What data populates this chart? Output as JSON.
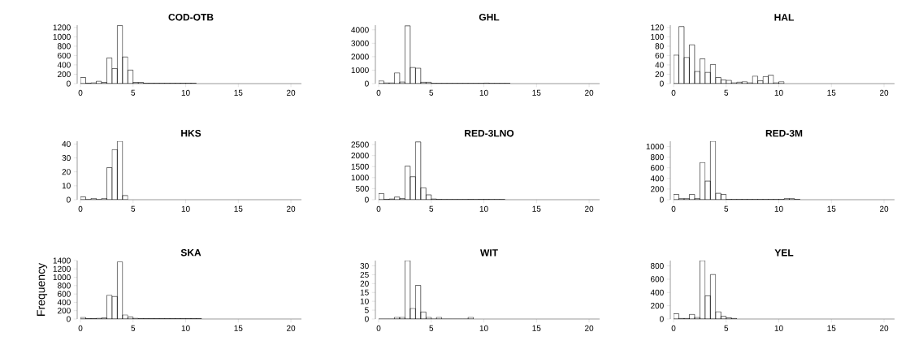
{
  "chart_data": [
    {
      "type": "histogram",
      "title": "COD-OTB",
      "bins": [
        0,
        0.5,
        1,
        1.5,
        2,
        2.5,
        3,
        3.5,
        4,
        4.5,
        5,
        5.5,
        6,
        6.5,
        7,
        7.5,
        8,
        8.5,
        9,
        9.5,
        10,
        10.5,
        11
      ],
      "values": [
        130,
        10,
        20,
        50,
        25,
        550,
        320,
        1240,
        570,
        290,
        25,
        25,
        10,
        10,
        10,
        10,
        10,
        10,
        10,
        10,
        10,
        10
      ],
      "xlim": [
        0,
        21
      ],
      "xticks": [
        0,
        5,
        10,
        15,
        20
      ],
      "ylim": [
        0,
        1250
      ],
      "yticks": [
        0,
        200,
        400,
        600,
        800,
        1000,
        1200
      ]
    },
    {
      "type": "histogram",
      "title": "GHL",
      "bins": [
        0,
        0.5,
        1,
        1.5,
        2,
        2.5,
        3,
        3.5,
        4,
        4.5,
        5,
        5.5,
        6,
        6.5,
        7,
        7.5,
        8,
        8.5,
        9,
        9.5,
        10,
        10.5,
        11,
        11.5,
        12,
        12.5
      ],
      "values": [
        200,
        60,
        60,
        800,
        120,
        4300,
        1200,
        1150,
        100,
        100,
        20,
        20,
        20,
        20,
        20,
        20,
        20,
        20,
        20,
        20,
        40,
        20,
        20,
        20,
        20
      ],
      "xlim": [
        0,
        21
      ],
      "xticks": [
        0,
        5,
        10,
        15,
        20
      ],
      "ylim": [
        0,
        4350
      ],
      "yticks": [
        0,
        1000,
        2000,
        3000,
        4000
      ]
    },
    {
      "type": "histogram",
      "title": "HAL",
      "bins": [
        0,
        0.5,
        1,
        1.5,
        2,
        2.5,
        3,
        3.5,
        4,
        4.5,
        5,
        5.5,
        6,
        6.5,
        7,
        7.5,
        8,
        8.5,
        9,
        9.5,
        10,
        10.5
      ],
      "values": [
        61,
        122,
        56,
        83,
        26,
        53,
        24,
        41,
        13,
        8,
        7,
        2,
        3,
        4,
        2,
        16,
        6,
        15,
        18,
        2,
        4
      ],
      "xlim": [
        0,
        21
      ],
      "xticks": [
        0,
        5,
        10,
        15,
        20
      ],
      "ylim": [
        0,
        125
      ],
      "yticks": [
        0,
        20,
        40,
        60,
        80,
        100,
        120
      ]
    },
    {
      "type": "histogram",
      "title": "HKS",
      "bins": [
        0,
        0.5,
        1,
        1.5,
        2,
        2.5,
        3,
        3.5,
        4,
        4.5
      ],
      "values": [
        2,
        0,
        1,
        0,
        1,
        23,
        36,
        42,
        3
      ],
      "xlim": [
        0,
        21
      ],
      "xticks": [
        0,
        5,
        10,
        15,
        20
      ],
      "ylim": [
        0,
        42
      ],
      "yticks": [
        0,
        10,
        20,
        30,
        40
      ]
    },
    {
      "type": "histogram",
      "title": "RED-3LNO",
      "bins": [
        0,
        0.5,
        1,
        1.5,
        2,
        2.5,
        3,
        3.5,
        4,
        4.5,
        5,
        5.5,
        6,
        6.5,
        7,
        7.5,
        8,
        8.5,
        9,
        9.5,
        10,
        10.5,
        11,
        11.5,
        12
      ],
      "values": [
        280,
        20,
        30,
        120,
        50,
        1520,
        1040,
        2620,
        540,
        220,
        30,
        20,
        10,
        10,
        10,
        10,
        10,
        20,
        10,
        20,
        20,
        10,
        10,
        10
      ],
      "xlim": [
        0,
        21
      ],
      "xticks": [
        0,
        5,
        10,
        15,
        20
      ],
      "ylim": [
        0,
        2650
      ],
      "yticks": [
        0,
        500,
        1000,
        1500,
        2000,
        2500
      ]
    },
    {
      "type": "histogram",
      "title": "RED-3M",
      "bins": [
        0,
        0.5,
        1,
        1.5,
        2,
        2.5,
        3,
        3.5,
        4,
        4.5,
        5,
        5.5,
        6,
        6.5,
        7,
        7.5,
        8,
        8.5,
        9,
        9.5,
        10,
        10.5,
        11,
        11.5,
        12
      ],
      "values": [
        100,
        20,
        20,
        100,
        20,
        700,
        350,
        1100,
        120,
        100,
        10,
        10,
        10,
        10,
        10,
        10,
        10,
        10,
        10,
        10,
        10,
        20,
        20,
        10
      ],
      "xlim": [
        0,
        21
      ],
      "xticks": [
        0,
        5,
        10,
        15,
        20
      ],
      "ylim": [
        0,
        1100
      ],
      "yticks": [
        0,
        200,
        400,
        600,
        800,
        1000
      ]
    },
    {
      "type": "histogram",
      "title": "SKA",
      "ylabel": "Frequency",
      "bins": [
        0,
        0.5,
        1,
        1.5,
        2,
        2.5,
        3,
        3.5,
        4,
        4.5,
        5,
        5.5,
        6,
        6.5,
        7,
        7.5,
        8,
        8.5,
        9,
        9.5,
        10,
        10.5,
        11,
        11.5
      ],
      "values": [
        40,
        10,
        10,
        20,
        25,
        570,
        540,
        1370,
        100,
        50,
        20,
        10,
        10,
        10,
        10,
        10,
        10,
        10,
        10,
        10,
        10,
        10,
        10
      ],
      "xlim": [
        0,
        21
      ],
      "xticks": [
        0,
        5,
        10,
        15,
        20
      ],
      "ylim": [
        0,
        1400
      ],
      "yticks": [
        0,
        200,
        400,
        600,
        800,
        1000,
        1200,
        1400
      ]
    },
    {
      "type": "histogram",
      "title": "WIT",
      "bins": [
        0,
        0.5,
        1,
        1.5,
        2,
        2.5,
        3,
        3.5,
        4,
        4.5,
        5,
        5.5,
        6,
        6.5,
        7,
        7.5,
        8,
        8.5,
        9
      ],
      "values": [
        0,
        0,
        0,
        1,
        1,
        33,
        6,
        19,
        4,
        1,
        0,
        1,
        0,
        0,
        0,
        0,
        0,
        1
      ],
      "xlim": [
        0,
        21
      ],
      "xticks": [
        0,
        5,
        10,
        15,
        20
      ],
      "ylim": [
        0,
        33
      ],
      "yticks": [
        0,
        5,
        10,
        15,
        20,
        25,
        30
      ]
    },
    {
      "type": "histogram",
      "title": "YEL",
      "bins": [
        0,
        0.5,
        1,
        1.5,
        2,
        2.5,
        3,
        3.5,
        4,
        4.5,
        5,
        5.5,
        6
      ],
      "values": [
        80,
        10,
        10,
        70,
        25,
        880,
        350,
        670,
        110,
        40,
        20,
        10
      ],
      "xlim": [
        0,
        21
      ],
      "xticks": [
        0,
        5,
        10,
        15,
        20
      ],
      "ylim": [
        0,
        880
      ],
      "yticks": [
        0,
        200,
        400,
        600,
        800
      ]
    }
  ]
}
